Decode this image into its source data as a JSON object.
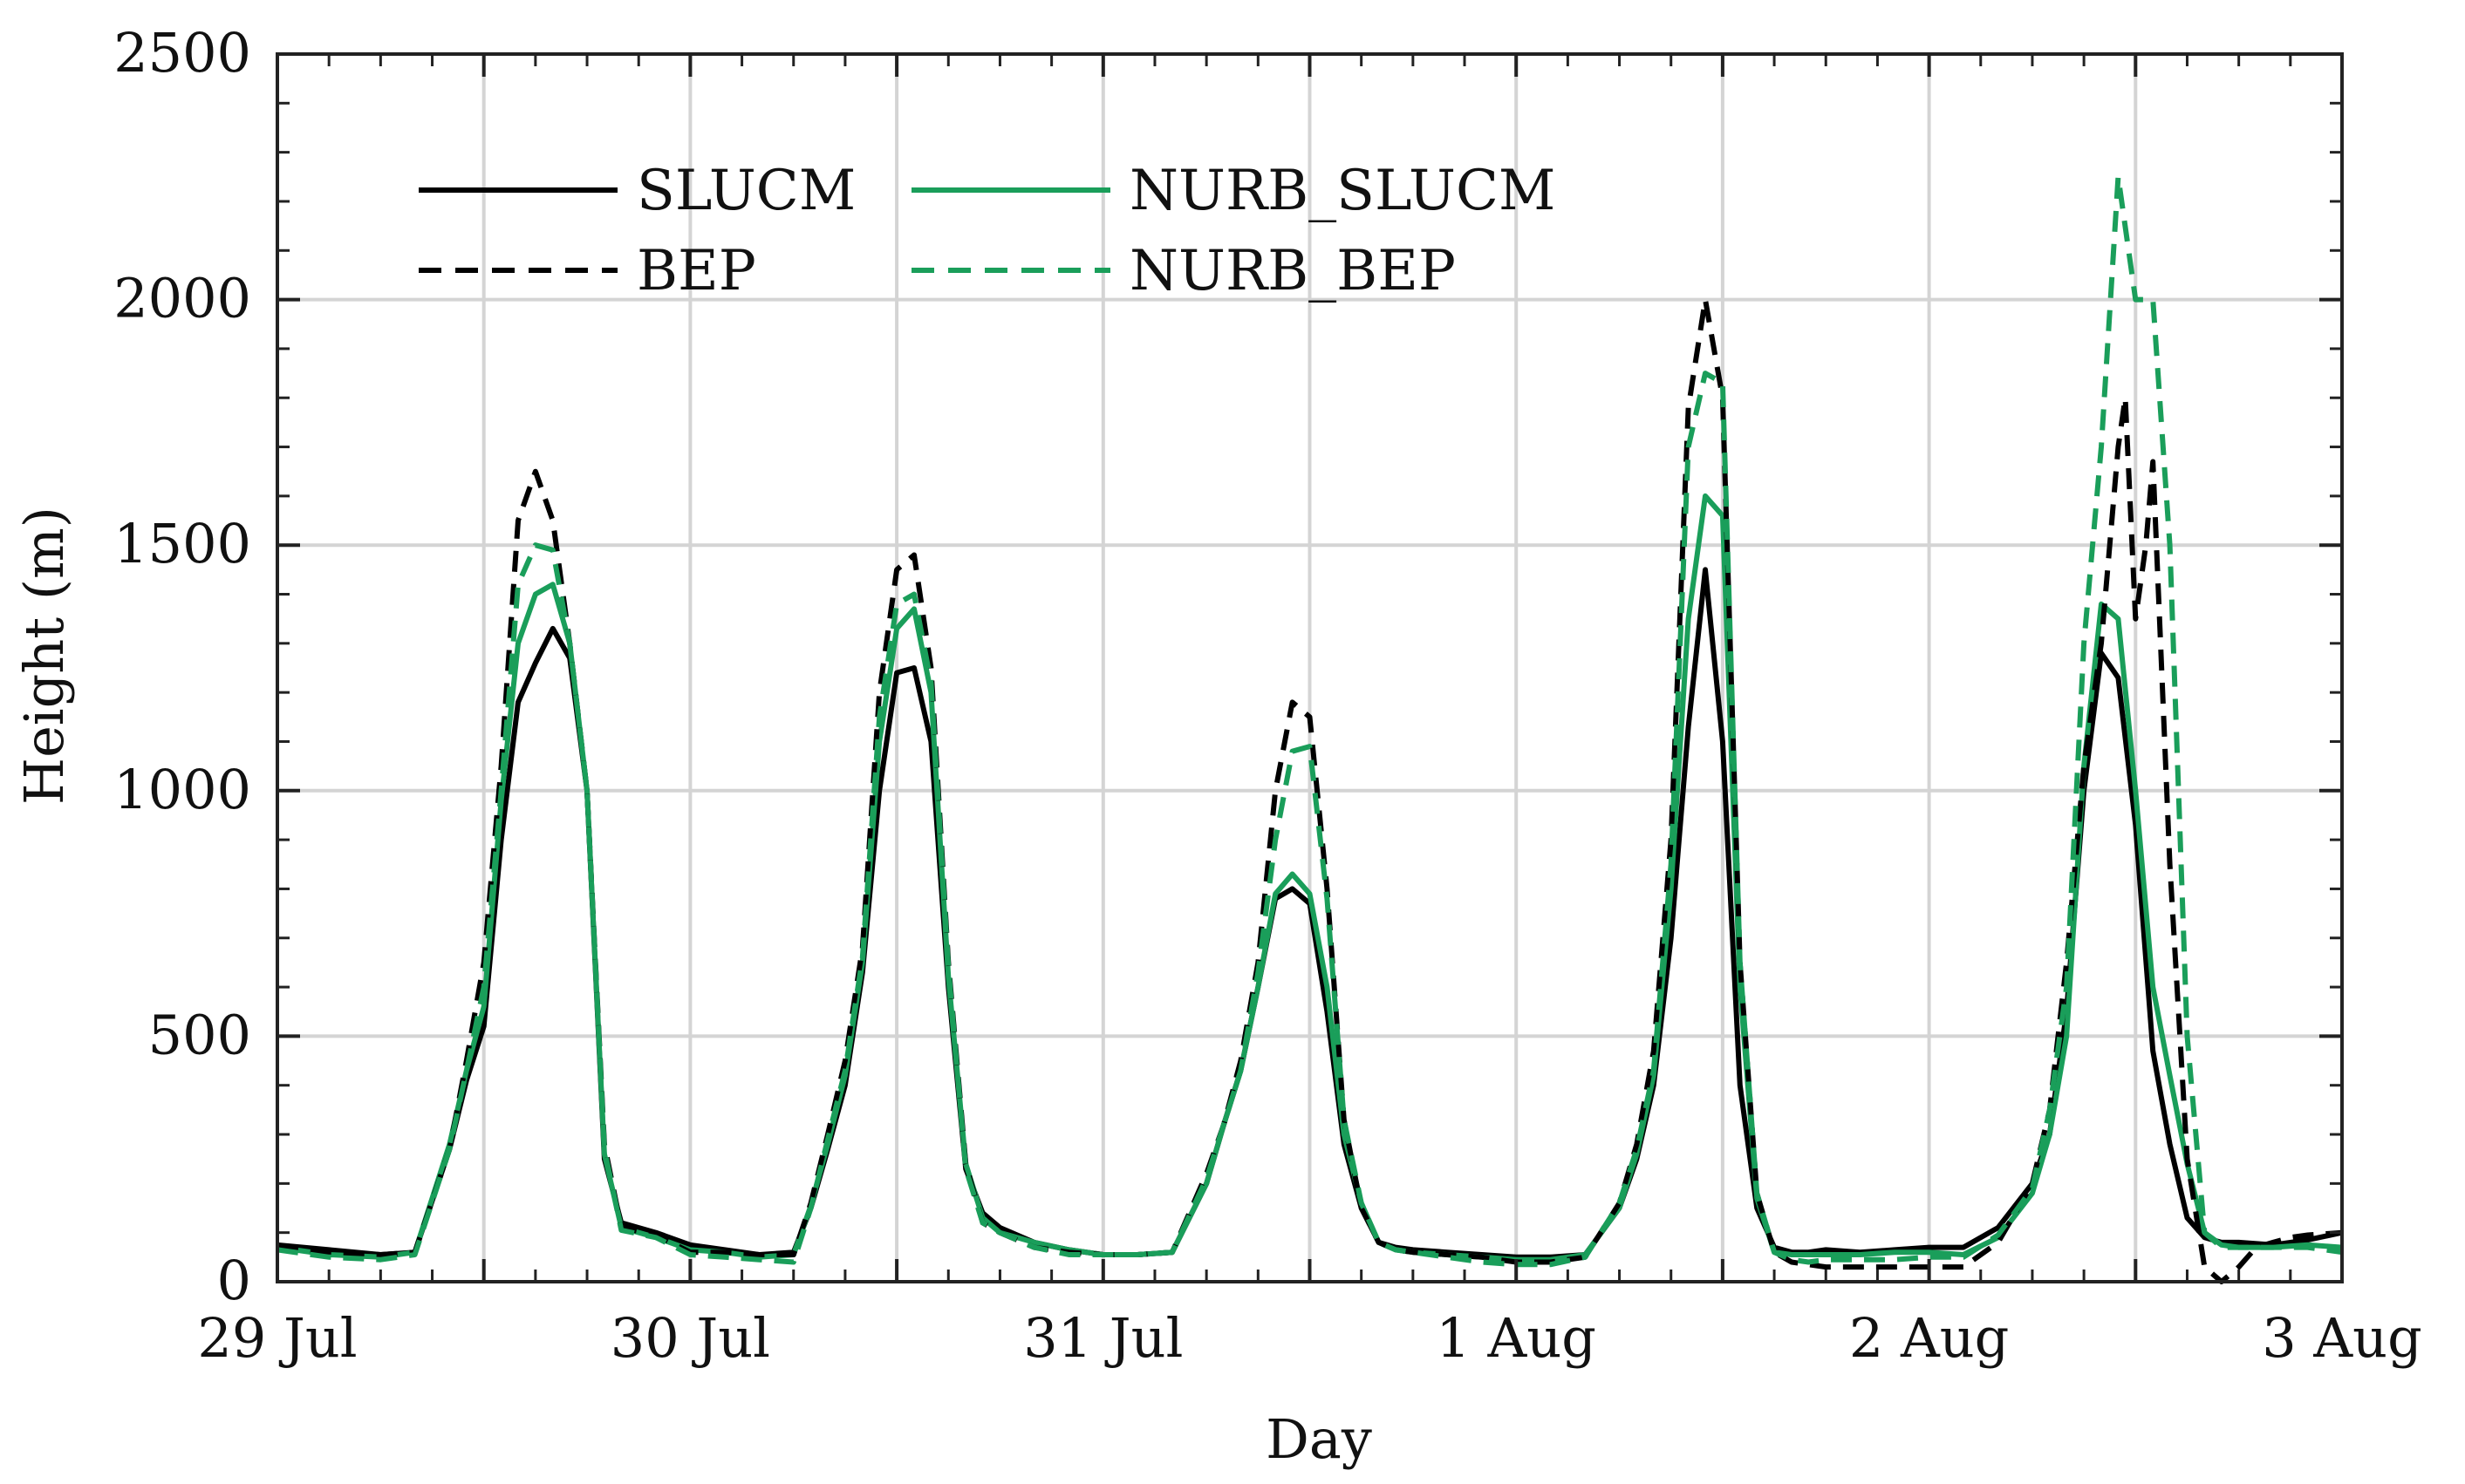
{
  "chart_data": {
    "type": "line",
    "xlabel": "Day",
    "ylabel": "Height (m)",
    "xlim": [
      0,
      5
    ],
    "ylim": [
      0,
      2500
    ],
    "x_unit": "days since 29 Jul 00:00",
    "x_tick_values": [
      0,
      1,
      2,
      3,
      4,
      5
    ],
    "x_tick_labels": [
      "29 Jul",
      "30 Jul",
      "31 Jul",
      "1 Aug",
      "2 Aug",
      "3 Aug"
    ],
    "y_tick_values": [
      0,
      500,
      1000,
      1500,
      2000,
      2500
    ],
    "y_tick_labels": [
      "0",
      "500",
      "1000",
      "1500",
      "2000",
      "2500"
    ],
    "grid": true,
    "legend_location": "top-left",
    "legend_columns": 2,
    "series": [
      {
        "name": "SLUCM",
        "color": "#000000",
        "dash": "solid",
        "x": [
          0,
          0.125,
          0.25,
          0.333,
          0.417,
          0.458,
          0.5,
          0.542,
          0.583,
          0.625,
          0.667,
          0.708,
          0.75,
          0.792,
          0.833,
          0.917,
          1,
          1.083,
          1.167,
          1.25,
          1.292,
          1.333,
          1.375,
          1.417,
          1.458,
          1.5,
          1.542,
          1.583,
          1.625,
          1.667,
          1.708,
          1.75,
          1.833,
          1.917,
          2,
          2.083,
          2.167,
          2.25,
          2.292,
          2.333,
          2.375,
          2.417,
          2.458,
          2.5,
          2.542,
          2.583,
          2.625,
          2.667,
          2.708,
          2.75,
          2.833,
          2.917,
          3,
          3.083,
          3.167,
          3.25,
          3.292,
          3.333,
          3.375,
          3.417,
          3.458,
          3.5,
          3.542,
          3.583,
          3.625,
          3.667,
          3.708,
          3.75,
          3.833,
          3.917,
          4,
          4.083,
          4.167,
          4.25,
          4.292,
          4.333,
          4.375,
          4.417,
          4.458,
          4.5,
          4.542,
          4.583,
          4.625,
          4.667,
          4.708,
          4.75,
          4.833,
          4.917,
          5
        ],
        "values": [
          75,
          65,
          55,
          60,
          270,
          410,
          520,
          900,
          1180,
          1260,
          1330,
          1270,
          1000,
          250,
          120,
          100,
          75,
          65,
          55,
          60,
          150,
          270,
          400,
          630,
          1000,
          1240,
          1250,
          1100,
          600,
          230,
          140,
          110,
          80,
          65,
          55,
          55,
          60,
          200,
          320,
          430,
          600,
          780,
          800,
          770,
          550,
          280,
          150,
          80,
          70,
          65,
          60,
          55,
          50,
          50,
          55,
          150,
          250,
          400,
          700,
          1130,
          1450,
          1100,
          400,
          150,
          70,
          60,
          60,
          65,
          60,
          65,
          70,
          70,
          110,
          200,
          300,
          550,
          1000,
          1280,
          1230,
          930,
          470,
          280,
          130,
          90,
          80,
          80,
          75,
          85,
          100
        ]
      },
      {
        "name": "BEP",
        "color": "#000000",
        "dash": "dashed",
        "x": [
          0,
          0.125,
          0.25,
          0.333,
          0.417,
          0.458,
          0.5,
          0.542,
          0.583,
          0.625,
          0.667,
          0.708,
          0.75,
          0.792,
          0.833,
          0.917,
          1,
          1.083,
          1.167,
          1.25,
          1.292,
          1.333,
          1.375,
          1.417,
          1.458,
          1.5,
          1.542,
          1.583,
          1.625,
          1.667,
          1.708,
          1.75,
          1.833,
          1.917,
          2,
          2.083,
          2.167,
          2.25,
          2.292,
          2.333,
          2.375,
          2.417,
          2.458,
          2.5,
          2.542,
          2.583,
          2.625,
          2.667,
          2.708,
          2.75,
          2.833,
          2.917,
          3,
          3.083,
          3.167,
          3.25,
          3.292,
          3.333,
          3.375,
          3.417,
          3.458,
          3.5,
          3.542,
          3.583,
          3.625,
          3.667,
          3.708,
          3.75,
          3.833,
          3.917,
          4,
          4.083,
          4.167,
          4.25,
          4.292,
          4.333,
          4.375,
          4.417,
          4.458,
          4.475,
          4.5,
          4.525,
          4.542,
          4.558,
          4.583,
          4.625,
          4.667,
          4.708,
          4.75,
          4.792,
          4.833,
          4.875,
          4.917,
          5
        ],
        "values": [
          70,
          60,
          55,
          60,
          270,
          450,
          650,
          1050,
          1550,
          1650,
          1550,
          1300,
          1000,
          280,
          110,
          95,
          60,
          60,
          55,
          55,
          160,
          300,
          450,
          680,
          1200,
          1450,
          1480,
          1250,
          650,
          240,
          120,
          100,
          70,
          60,
          55,
          55,
          60,
          220,
          320,
          450,
          650,
          1000,
          1180,
          1150,
          800,
          330,
          150,
          80,
          65,
          60,
          55,
          50,
          40,
          40,
          50,
          160,
          280,
          470,
          900,
          1780,
          2000,
          1800,
          650,
          180,
          60,
          40,
          35,
          30,
          30,
          30,
          30,
          30,
          80,
          200,
          350,
          650,
          1050,
          1300,
          1700,
          1800,
          1350,
          1500,
          1670,
          1350,
          850,
          250,
          30,
          0,
          30,
          70,
          80,
          90,
          95,
          100
        ]
      },
      {
        "name": "NURB_SLUCM",
        "color": "#1a9e5a",
        "dash": "solid",
        "x": [
          0,
          0.125,
          0.25,
          0.333,
          0.417,
          0.458,
          0.5,
          0.542,
          0.583,
          0.625,
          0.667,
          0.708,
          0.75,
          0.792,
          0.833,
          0.917,
          1,
          1.083,
          1.167,
          1.25,
          1.292,
          1.333,
          1.375,
          1.417,
          1.458,
          1.5,
          1.542,
          1.583,
          1.625,
          1.667,
          1.708,
          1.75,
          1.833,
          1.917,
          2,
          2.083,
          2.167,
          2.25,
          2.292,
          2.333,
          2.375,
          2.417,
          2.458,
          2.5,
          2.542,
          2.583,
          2.625,
          2.667,
          2.708,
          2.75,
          2.833,
          2.917,
          3,
          3.083,
          3.167,
          3.25,
          3.292,
          3.333,
          3.375,
          3.417,
          3.458,
          3.5,
          3.542,
          3.583,
          3.625,
          3.667,
          3.708,
          3.75,
          3.833,
          3.917,
          4,
          4.083,
          4.167,
          4.25,
          4.292,
          4.333,
          4.375,
          4.417,
          4.458,
          4.5,
          4.542,
          4.583,
          4.625,
          4.667,
          4.708,
          4.75,
          4.833,
          4.917,
          5
        ],
        "values": [
          70,
          55,
          50,
          60,
          280,
          430,
          560,
          980,
          1300,
          1400,
          1420,
          1300,
          1000,
          260,
          110,
          90,
          65,
          60,
          50,
          55,
          155,
          280,
          420,
          650,
          1100,
          1330,
          1370,
          1200,
          620,
          240,
          130,
          100,
          80,
          65,
          55,
          55,
          60,
          200,
          320,
          430,
          600,
          790,
          830,
          790,
          600,
          300,
          160,
          80,
          65,
          60,
          55,
          50,
          45,
          45,
          55,
          150,
          260,
          420,
          800,
          1350,
          1600,
          1560,
          600,
          170,
          60,
          55,
          55,
          55,
          55,
          60,
          60,
          55,
          90,
          180,
          300,
          500,
          1050,
          1380,
          1350,
          1000,
          600,
          420,
          240,
          100,
          75,
          70,
          70,
          75,
          70
        ]
      },
      {
        "name": "NURB_BEP",
        "color": "#1a9e5a",
        "dash": "dashed",
        "x": [
          0,
          0.125,
          0.25,
          0.333,
          0.417,
          0.458,
          0.5,
          0.542,
          0.583,
          0.625,
          0.667,
          0.708,
          0.75,
          0.792,
          0.833,
          0.917,
          1,
          1.083,
          1.167,
          1.25,
          1.292,
          1.333,
          1.375,
          1.417,
          1.458,
          1.5,
          1.542,
          1.583,
          1.625,
          1.667,
          1.708,
          1.75,
          1.833,
          1.917,
          2,
          2.083,
          2.167,
          2.25,
          2.292,
          2.333,
          2.375,
          2.417,
          2.458,
          2.5,
          2.542,
          2.583,
          2.625,
          2.667,
          2.708,
          2.75,
          2.833,
          2.917,
          3,
          3.083,
          3.167,
          3.25,
          3.292,
          3.333,
          3.375,
          3.417,
          3.458,
          3.5,
          3.542,
          3.583,
          3.625,
          3.667,
          3.708,
          3.75,
          3.833,
          3.917,
          4,
          4.083,
          4.167,
          4.25,
          4.292,
          4.333,
          4.375,
          4.417,
          4.458,
          4.5,
          4.542,
          4.583,
          4.625,
          4.667,
          4.708,
          4.75,
          4.833,
          4.917,
          5
        ],
        "values": [
          65,
          50,
          45,
          55,
          270,
          430,
          600,
          1000,
          1420,
          1500,
          1490,
          1300,
          1000,
          270,
          105,
          90,
          55,
          50,
          45,
          40,
          150,
          290,
          430,
          660,
          1150,
          1380,
          1400,
          1220,
          640,
          230,
          120,
          100,
          70,
          55,
          55,
          55,
          60,
          210,
          320,
          430,
          630,
          900,
          1080,
          1090,
          780,
          330,
          160,
          80,
          65,
          60,
          50,
          40,
          35,
          35,
          50,
          160,
          270,
          430,
          850,
          1700,
          1850,
          1830,
          650,
          180,
          60,
          45,
          40,
          45,
          45,
          45,
          50,
          50,
          95,
          190,
          350,
          600,
          1300,
          1700,
          2250,
          2000,
          2000,
          1500,
          500,
          100,
          70,
          70,
          70,
          70,
          60
        ]
      }
    ]
  }
}
